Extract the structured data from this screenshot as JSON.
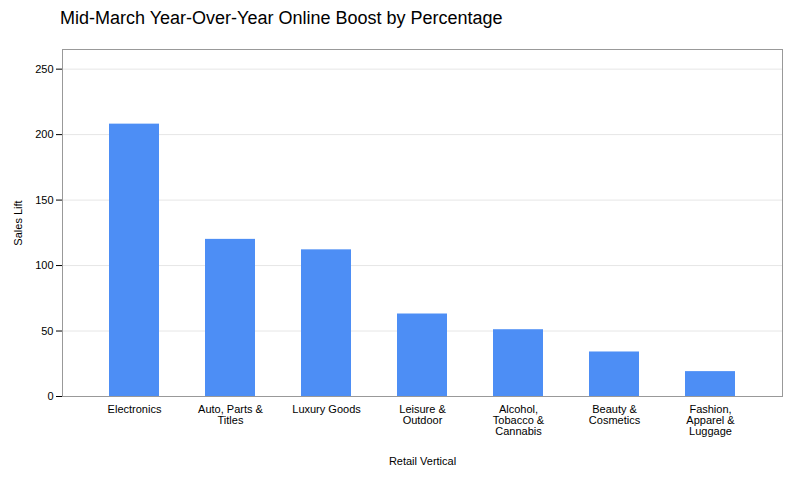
{
  "chart_data": {
    "type": "bar",
    "title": "Mid-March Year-Over-Year Online Boost by Percentage",
    "xlabel": "Retail Vertical",
    "ylabel": "Sales Lift",
    "categories": [
      "Electronics",
      "Auto, Parts &\nTitles",
      "Luxury Goods",
      "Leisure &\nOutdoor",
      "Alcohol,\nTobacco &\nCannabis",
      "Beauty &\nCosmetics",
      "Fashion,\nApparel &\nLuggage"
    ],
    "values": [
      208,
      120,
      112,
      63,
      51,
      34,
      19
    ],
    "color": "#4D8EF5",
    "ylim": [
      0,
      265
    ],
    "yticks": [
      0,
      50,
      100,
      150,
      200,
      250
    ],
    "grid": true
  }
}
